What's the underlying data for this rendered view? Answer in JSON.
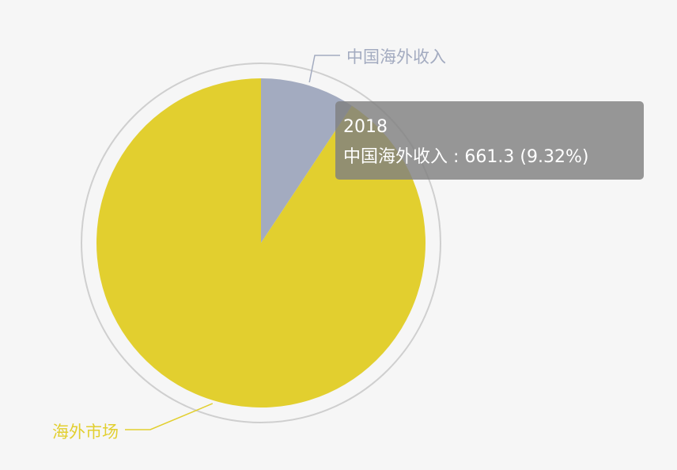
{
  "chart_data": {
    "type": "pie",
    "series_name": "2018",
    "slices": [
      {
        "name": "中国海外收入",
        "value": 661.3,
        "percent": "9.32%",
        "color": "#a3abc0"
      },
      {
        "name": "海外市场",
        "value": 6434.3,
        "percent": "90.68%",
        "color": "#e2cf2f"
      }
    ],
    "colors": {
      "outer_ring": "#cfcfcf",
      "background": "#f6f6f6",
      "label_line_1": "#a3abc0",
      "label_line_2": "#e2cf2f"
    }
  },
  "tooltip": {
    "title": "2018",
    "slice_name": "中国海外收入",
    "separator": " : ",
    "value": "661.3",
    "percent": "(9.32%)"
  }
}
